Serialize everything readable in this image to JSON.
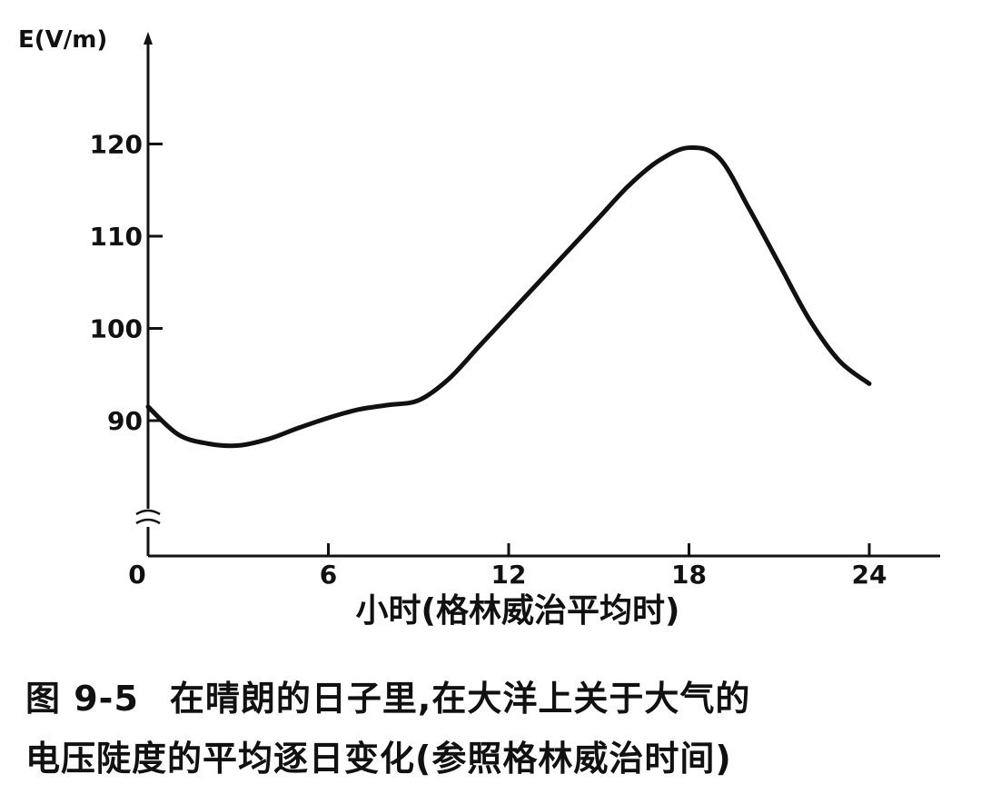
{
  "chart_data": {
    "type": "line",
    "ylabel": "E(V/m)",
    "xlabel": "小时(格林威治平均时)",
    "x_ticks": [
      "0",
      "6",
      "12",
      "18",
      "24"
    ],
    "y_ticks": [
      "90",
      "100",
      "110",
      "120"
    ],
    "xlim": [
      0,
      24
    ],
    "ylim": [
      80,
      125
    ],
    "y_axis_break": true,
    "grid": false,
    "series": [
      {
        "x": [
          0,
          1,
          2,
          3,
          4,
          5,
          6,
          7,
          8,
          9,
          10,
          11,
          12,
          13,
          14,
          15,
          16,
          17,
          18,
          19,
          20,
          21,
          22,
          23,
          24
        ],
        "values": [
          91.5,
          88.5,
          87.5,
          87.3,
          88.0,
          89.2,
          90.3,
          91.2,
          91.7,
          92.2,
          94.5,
          98.0,
          101.5,
          105.0,
          108.5,
          112.0,
          115.5,
          118.2,
          119.6,
          118.5,
          113.0,
          107.0,
          101.0,
          96.5,
          94.0
        ]
      }
    ],
    "color": "#111111"
  },
  "caption": {
    "figure_number": "图 9-5",
    "line1": "在晴朗的日子里,在大洋上关于大气的",
    "line2": "电压陡度的平均逐日变化(参照格林威治时间)"
  }
}
